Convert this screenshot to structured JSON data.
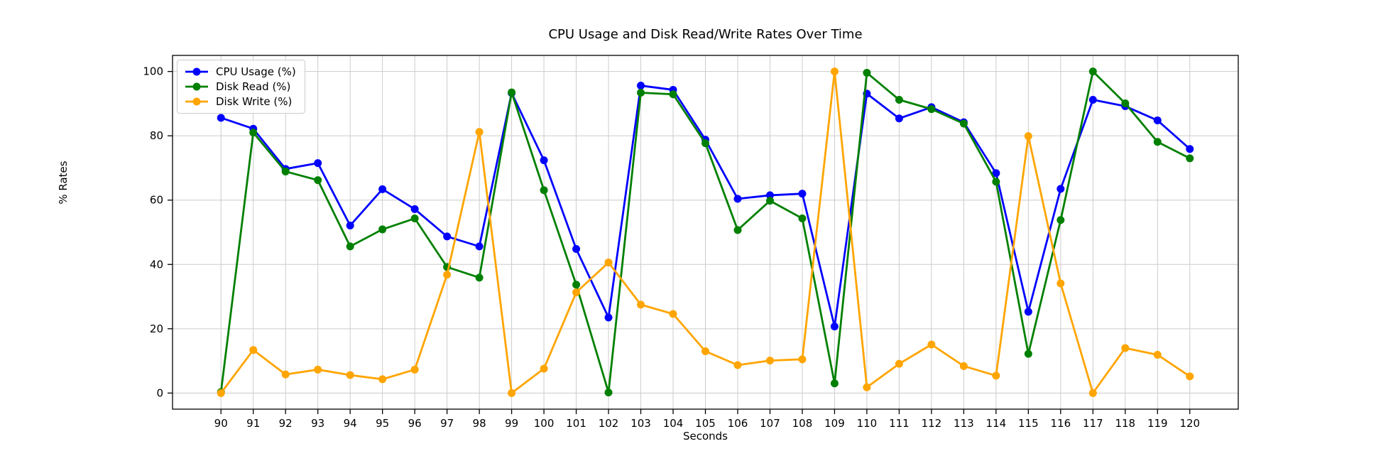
{
  "chart_data": {
    "type": "line",
    "title": "CPU Usage and Disk Read/Write Rates Over Time",
    "xlabel": "Seconds",
    "ylabel": "% Rates",
    "x": [
      90,
      91,
      92,
      93,
      94,
      95,
      96,
      97,
      98,
      99,
      100,
      101,
      102,
      103,
      104,
      105,
      106,
      107,
      108,
      109,
      110,
      111,
      112,
      113,
      114,
      115,
      116,
      117,
      118,
      119,
      120
    ],
    "xticks": [
      90,
      91,
      92,
      93,
      94,
      95,
      96,
      97,
      98,
      99,
      100,
      101,
      102,
      103,
      104,
      105,
      106,
      107,
      108,
      109,
      110,
      111,
      112,
      113,
      114,
      115,
      116,
      117,
      118,
      119,
      120
    ],
    "yticks": [
      0,
      20,
      40,
      60,
      80,
      100
    ],
    "xlim": [
      88.5,
      121.5
    ],
    "ylim": [
      -5,
      105
    ],
    "grid": true,
    "grid_color": "#cccccc",
    "axis_color": "#000000",
    "legend_position": "upper-left",
    "series": [
      {
        "name": "CPU Usage (%)",
        "color": "#0000ff",
        "marker": "circle",
        "values": [
          85.6,
          82.2,
          69.7,
          71.5,
          52.1,
          63.4,
          57.2,
          48.7,
          45.6,
          93.3,
          72.4,
          44.8,
          23.5,
          95.6,
          94.3,
          78.8,
          60.4,
          61.5,
          62.0,
          20.7,
          93.1,
          85.4,
          88.9,
          84.2,
          68.4,
          25.3,
          63.5,
          91.2,
          89.2,
          84.8,
          75.9
        ]
      },
      {
        "name": "Disk Read (%)",
        "color": "#008000",
        "marker": "circle",
        "values": [
          0.3,
          81.0,
          68.9,
          66.2,
          45.6,
          50.9,
          54.3,
          39.2,
          35.9,
          93.5,
          63.1,
          33.7,
          0.2,
          93.4,
          92.9,
          77.7,
          50.7,
          59.8,
          54.3,
          3.0,
          99.6,
          91.2,
          88.3,
          83.8,
          65.7,
          12.2,
          53.8,
          100.0,
          90.1,
          78.1,
          73.0
        ]
      },
      {
        "name": "Disk Write (%)",
        "color": "#ffa500",
        "marker": "circle",
        "values": [
          0.0,
          13.4,
          5.8,
          7.3,
          5.6,
          4.3,
          7.3,
          36.8,
          81.2,
          0.0,
          7.6,
          31.3,
          40.6,
          27.5,
          24.6,
          13.0,
          8.7,
          10.1,
          10.5,
          100.0,
          1.8,
          9.1,
          15.1,
          8.4,
          5.4,
          79.9,
          34.1,
          0.0,
          14.0,
          11.9,
          5.2
        ]
      }
    ]
  }
}
